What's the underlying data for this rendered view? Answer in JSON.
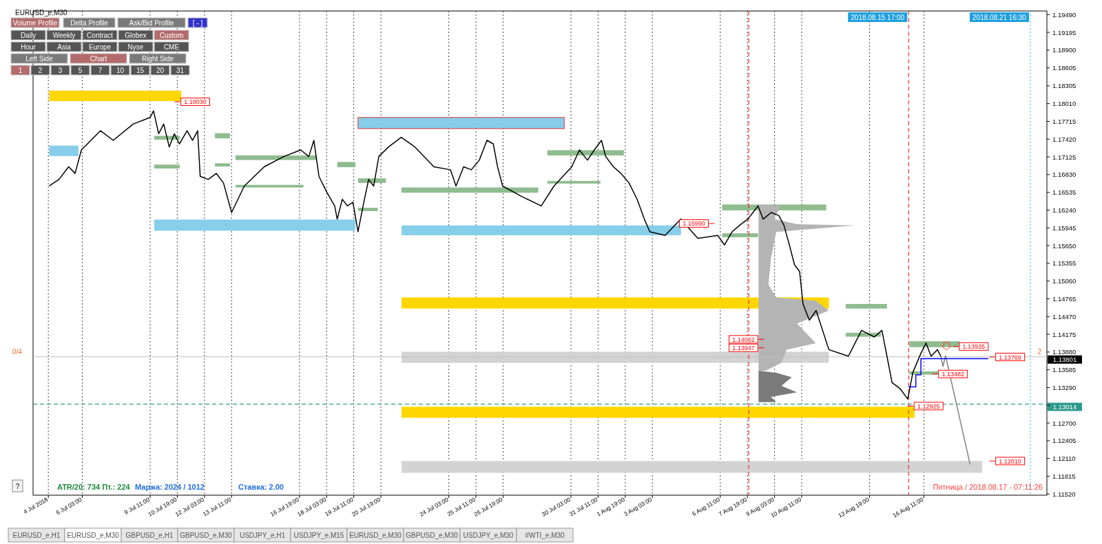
{
  "chart_data": {
    "type": "line",
    "title": "EURUSD_e,M30",
    "x": [
      "2018-07-04T12:00",
      "2018-07-04T23:30",
      "2018-07-05T11:00",
      "2018-07-05T18:30",
      "2018-07-06T02:00",
      "2018-07-07T00:30",
      "2018-07-07T15:30",
      "2018-07-08T15:00",
      "2018-07-09T11:00",
      "2018-07-09T15:00",
      "2018-07-09T21:00",
      "2018-07-10T03:00",
      "2018-07-10T09:30",
      "2018-07-10T15:30",
      "2018-07-10T21:30",
      "2018-07-11T06:30",
      "2018-07-11T13:00",
      "2018-07-11T19:00",
      "2018-07-11T22:00",
      "2018-07-12T07:30",
      "2018-07-12T17:00",
      "2018-07-13T01:30",
      "2018-07-13T11:00",
      "2018-07-14T02:00",
      "2018-07-15T01:30",
      "2018-07-16T00:30",
      "2018-07-16T20:30",
      "2018-07-17T06:00",
      "2018-07-17T12:00",
      "2018-07-17T18:00",
      "2018-07-18T03:30",
      "2018-07-18T12:30",
      "2018-07-18T15:30",
      "2018-07-18T21:30",
      "2018-07-19T03:30",
      "2018-07-19T10:00",
      "2018-07-19T16:00",
      "2018-07-19T22:00",
      "2018-07-20T04:30",
      "2018-07-20T10:30",
      "2018-07-20T16:30",
      "2018-07-21T04:00",
      "2018-07-21T19:00",
      "2018-07-22T11:00",
      "2018-07-23T09:30",
      "2018-07-24T05:00",
      "2018-07-24T11:30",
      "2018-07-24T20:30",
      "2018-07-25T05:30",
      "2018-07-25T15:00",
      "2018-07-26T00:00",
      "2018-07-26T07:30",
      "2018-07-26T12:30",
      "2018-07-26T18:30",
      "2018-07-27T16:30",
      "2018-07-28T16:00",
      "2018-07-29T07:00",
      "2018-07-30T04:00",
      "2018-07-30T13:00",
      "2018-07-30T22:30",
      "2018-07-31T06:30",
      "2018-07-31T15:00",
      "2018-07-31T20:00",
      "2018-08-01T05:00",
      "2018-08-01T14:00",
      "2018-08-01T23:30",
      "2018-08-02T09:00",
      "2018-08-02T17:30",
      "2018-08-03T00:00",
      "2018-08-03T18:00",
      "2018-08-04T12:30",
      "2018-08-05T08:30",
      "2018-08-06T08:00",
      "2018-08-06T16:00",
      "2018-08-07T01:00",
      "2018-08-07T10:00",
      "2018-08-07T19:30",
      "2018-08-08T01:30",
      "2018-08-08T07:30",
      "2018-08-08T13:30",
      "2018-08-08T23:00",
      "2018-08-09T08:00",
      "2018-08-09T14:00",
      "2018-08-09T20:30",
      "2018-08-10T02:30",
      "2018-08-10T08:30",
      "2018-08-10T12:30",
      "2018-08-10T20:00",
      "2018-08-11T04:00",
      "2018-08-11T19:00",
      "2018-08-12T18:00",
      "2018-08-13T09:30",
      "2018-08-14T00:30",
      "2018-08-14T09:30",
      "2018-08-14T15:30",
      "2018-08-14T21:30",
      "2018-08-15T07:00",
      "2018-08-15T16:00",
      "2018-08-15T22:00",
      "2018-08-16T07:30",
      "2018-08-16T13:30",
      "2018-08-16T19:30",
      "2018-08-17T03:00",
      "2018-08-17T07:00"
    ],
    "series": [
      {
        "color": "#000000",
        "values": [
          1.1664,
          1.1675,
          1.1696,
          1.1685,
          1.1724,
          1.1756,
          1.174,
          1.1767,
          1.1778,
          1.1789,
          1.1751,
          1.1767,
          1.1729,
          1.1751,
          1.1734,
          1.1756,
          1.174,
          1.1756,
          1.168,
          1.1675,
          1.1685,
          1.1669,
          1.162,
          1.1664,
          1.1696,
          1.1713,
          1.1724,
          1.1713,
          1.174,
          1.168,
          1.1653,
          1.1631,
          1.1609,
          1.1642,
          1.1631,
          1.1637,
          1.1588,
          1.1631,
          1.1675,
          1.1664,
          1.1713,
          1.1729,
          1.1745,
          1.1729,
          1.1696,
          1.1691,
          1.1664,
          1.1696,
          1.1691,
          1.1707,
          1.174,
          1.1734,
          1.1696,
          1.1664,
          1.1647,
          1.1631,
          1.1664,
          1.1696,
          1.1724,
          1.1707,
          1.1724,
          1.174,
          1.1713,
          1.1696,
          1.1685,
          1.1669,
          1.1642,
          1.1609,
          1.1588,
          1.1582,
          1.1609,
          1.1577,
          1.1582,
          1.1566,
          1.1588,
          1.1599,
          1.1609,
          1.162,
          1.1631,
          1.1609,
          1.162,
          1.1615,
          1.1599,
          1.1566,
          1.1533,
          1.1522,
          1.1468,
          1.1441,
          1.1457,
          1.1392,
          1.1381,
          1.1424,
          1.1413,
          1.1424,
          1.1381,
          1.1337,
          1.1327,
          1.131,
          1.1354,
          1.1386,
          1.1403,
          1.1381,
          1.1392,
          1.1381
        ]
      },
      {
        "color": "#808080",
        "x": [
          "2018-08-17T07:00",
          "2018-08-17T09:30",
          "2018-08-17T12:30",
          "2018-08-18T17:30"
        ],
        "values": [
          1.1381,
          1.1364,
          1.1382,
          1.1201
        ]
      },
      {
        "type": "step",
        "color": "#0000ff",
        "x": [
          "2018-08-15T17:00",
          "2018-08-16T01:30",
          "2018-08-16T07:30",
          "2018-08-19T15:00"
        ],
        "values": [
          1.133,
          1.135,
          1.1377,
          1.1377
        ]
      }
    ],
    "xlim": [
      "2018-07-03T17:00",
      "2018-08-22T12:00"
    ],
    "ylim": [
      1.115,
      1.1955
    ],
    "xticks": [
      {
        "value": "2018-07-04T11:00",
        "label": "4 Jul 2018"
      },
      {
        "value": "2018-07-06T03:00",
        "label": "6 Jul 03:00"
      },
      {
        "value": "2018-07-09T11:00",
        "label": "9 Jul 11:00"
      },
      {
        "value": "2018-07-10T19:00",
        "label": "10 Jul 19:00"
      },
      {
        "value": "2018-07-12T03:00",
        "label": "12 Jul 03:00"
      },
      {
        "value": "2018-07-13T11:00",
        "label": "13 Jul 11:00"
      },
      {
        "value": "2018-07-16T19:00",
        "label": "16 Jul 19:00"
      },
      {
        "value": "2018-07-18T03:00",
        "label": "18 Jul 03:00"
      },
      {
        "value": "2018-07-19T11:00",
        "label": "19 Jul 11:00"
      },
      {
        "value": "2018-07-20T19:00",
        "label": "20 Jul 19:00"
      },
      {
        "value": "2018-07-24T03:00",
        "label": "24 Jul 03:00"
      },
      {
        "value": "2018-07-25T11:00",
        "label": "25 Jul 11:00"
      },
      {
        "value": "2018-07-26T19:00",
        "label": "26 Jul 19:00"
      },
      {
        "value": "2018-07-30T03:00",
        "label": "30 Jul 03:00"
      },
      {
        "value": "2018-07-31T11:00",
        "label": "31 Jul 11:00"
      },
      {
        "value": "2018-08-01T19:00",
        "label": "1 Aug 19:00"
      },
      {
        "value": "2018-08-03T03:00",
        "label": "3 Aug 03:00"
      },
      {
        "value": "2018-08-06T11:00",
        "label": "6 Aug 11:00"
      },
      {
        "value": "2018-08-07T19:00",
        "label": "7 Aug 19:00"
      },
      {
        "value": "2018-08-09T03:00",
        "label": "9 Aug 03:00"
      },
      {
        "value": "2018-08-10T11:00",
        "label": "10 Aug 11:00"
      },
      {
        "value": "2018-08-13T19:00",
        "label": "13 Aug 19:00"
      },
      {
        "value": "2018-08-16T11:00",
        "label": "16 Aug 11:00"
      }
    ],
    "yticks": [
      {
        "value": 1.1152,
        "label": "1.11520"
      },
      {
        "value": 1.11815,
        "label": "1.11815"
      },
      {
        "value": 1.1211,
        "label": "1.12110"
      },
      {
        "value": 1.12405,
        "label": "1.12405"
      },
      {
        "value": 1.127,
        "label": "1.12700"
      },
      {
        "value": 1.12995,
        "label": null
      },
      {
        "value": 1.1329,
        "label": "1.13290"
      },
      {
        "value": 1.13585,
        "label": "1.13585"
      },
      {
        "value": 1.1388,
        "label": "1.13880"
      },
      {
        "value": 1.14175,
        "label": "1.14175"
      },
      {
        "value": 1.1447,
        "label": "1.14470"
      },
      {
        "value": 1.14765,
        "label": "1.14765"
      },
      {
        "value": 1.1506,
        "label": "1.15060"
      },
      {
        "value": 1.15355,
        "label": "1.15355"
      },
      {
        "value": 1.1565,
        "label": "1.15650"
      },
      {
        "value": 1.15945,
        "label": "1.15945"
      },
      {
        "value": 1.1624,
        "label": "1.16240"
      },
      {
        "value": 1.16535,
        "label": "1.16535"
      },
      {
        "value": 1.1683,
        "label": "1.16830"
      },
      {
        "value": 1.17125,
        "label": "1.17125"
      },
      {
        "value": 1.1742,
        "label": "1.17420"
      },
      {
        "value": 1.17715,
        "label": "1.17715"
      },
      {
        "value": 1.1801,
        "label": "1.18010"
      },
      {
        "value": 1.18305,
        "label": "1.18305"
      },
      {
        "value": 1.18605,
        "label": "1.18605"
      },
      {
        "value": 1.189,
        "label": "1.18900"
      },
      {
        "value": 1.19195,
        "label": "1.19195"
      },
      {
        "value": 1.1949,
        "label": "1.19490"
      }
    ],
    "grid": "x",
    "ref_lines": [
      {
        "axis": "y",
        "value": 1.13014,
        "label": "1.13014",
        "color": "#2e9a8e",
        "line_style": "dashed"
      },
      {
        "axis": "y",
        "value": 1.13801,
        "label": "1.13801",
        "color": "#c0c0c0",
        "line_style": "solid"
      },
      {
        "axis": "x",
        "value": "2018-08-07T20:30",
        "color": "#ff0000",
        "line_style": "dashed"
      },
      {
        "axis": "x",
        "value": "2018-08-15T17:00",
        "label": "2018.08.15 17:00",
        "color": "#ff0000",
        "line_style": "dashed"
      },
      {
        "axis": "x",
        "value": "2018-08-21T16:30",
        "label": "2018.08.21 16:30",
        "color": "#00bfff",
        "line_style": "dotted"
      }
    ],
    "annotations": [
      "Volume Profile",
      "Delta Profile",
      "Ask/Bid Profile",
      "[ - ]",
      "Daily",
      "Weekly",
      "Contract",
      "Globex",
      "Custom",
      "Hour",
      "Asia",
      "Europe",
      "Nyse",
      "CME",
      "Left Side",
      "Chart",
      "Right Side",
      "1",
      "2",
      "3",
      "5",
      "7",
      "10",
      "15",
      "20",
      "31",
      "?",
      "ATR/20: 734  Пт.: 224",
      "Маржа: 2024 / 1012",
      "Ставка: 2.00",
      "Пятница / 2018.08.17 - 07:11:26",
      "0/4",
      "2",
      "EURUSD_e,H1",
      "EURUSD_e,M30",
      "GBPUSD_e,H1",
      "GBPUSD_e,M30",
      "USDJPY_e,H1",
      "USDJPY_e,M15",
      "EURUSD_e,M30",
      "GBPUSD_e,M30",
      "USDJPY_e,M30",
      "#WTI_e,M30",
      "1.18030",
      "1.15990",
      "1.14062",
      "1.13947",
      "1.13935",
      "1.13769",
      "1.13482",
      "1.12925",
      "1.12010"
    ]
  }
}
